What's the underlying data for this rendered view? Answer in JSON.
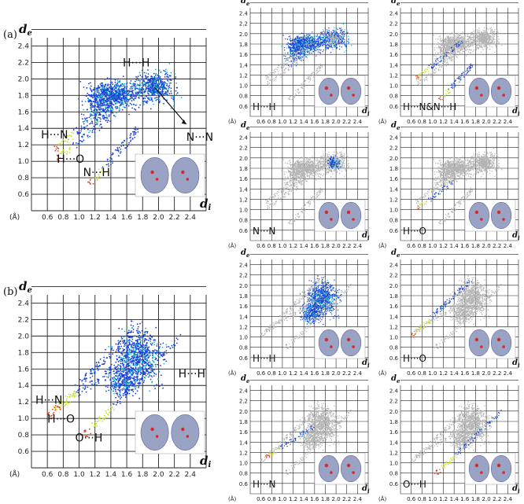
{
  "figure": {
    "panel_a_label": "(a)",
    "panel_b_label": "(b)"
  },
  "colors": {
    "background": "#ffffff",
    "grid": "#222222",
    "gray_points": "#b4b4b4",
    "density_low": "#1b3fd8",
    "density_mid": "#18b8d0",
    "density_high": "#c8e020",
    "density_peak": "#e23c1c"
  },
  "chart_data": [
    {
      "id": "a-full",
      "type": "scatter",
      "xlabel": "di",
      "ylabel": "de",
      "unit": "(Å)",
      "xlim": [
        0.4,
        2.6
      ],
      "ylim": [
        0.4,
        2.5
      ],
      "xticks": [
        "0.6",
        "0.8",
        "1.0",
        "1.2",
        "1.4",
        "1.6",
        "1.8",
        "2.0",
        "2.2",
        "2.4"
      ],
      "yticks": [
        "0.6",
        "0.8",
        "1.0",
        "1.2",
        "1.4",
        "1.6",
        "1.8",
        "2.0",
        "2.2",
        "2.4"
      ],
      "annotations": [
        {
          "text": "H···H",
          "x": 1.55,
          "y": 2.15
        },
        {
          "text": "N···N",
          "x": 2.35,
          "y": 1.25
        },
        {
          "text": "H···N",
          "x": 0.52,
          "y": 1.28
        },
        {
          "text": "H···O",
          "x": 0.72,
          "y": 0.98
        },
        {
          "text": "N···H",
          "x": 1.05,
          "y": 0.82
        }
      ],
      "regions": [
        {
          "name": "H···H",
          "clouds": [
            [
              1.45,
              1.8,
              0.35,
              0.18,
              700
            ],
            [
              1.95,
              1.9,
              0.3,
              0.2,
              400
            ],
            [
              1.25,
              1.65,
              0.2,
              0.25,
              250
            ]
          ]
        },
        {
          "name": "H···N",
          "spikes": [
            [
              0.68,
              1.12,
              1.55,
              1.85,
              90
            ],
            [
              1.12,
              0.7,
              1.75,
              1.4,
              90
            ]
          ]
        },
        {
          "name": "H···O",
          "spikes": [
            [
              0.72,
              1.02,
              1.4,
              1.55,
              60
            ]
          ]
        },
        {
          "name": "N···N",
          "clouds": [
            [
              1.95,
              1.9,
              0.12,
              0.12,
              120
            ]
          ]
        }
      ]
    },
    {
      "id": "a-HH",
      "type": "scatter",
      "label": "H···H",
      "xlim": [
        0.4,
        2.6
      ],
      "ylim": [
        0.4,
        2.5
      ],
      "highlight": "H···H"
    },
    {
      "id": "a-HN",
      "type": "scatter",
      "label": "H···N&N···H",
      "xlim": [
        0.4,
        2.6
      ],
      "ylim": [
        0.4,
        2.5
      ],
      "highlight": "H···N"
    },
    {
      "id": "a-NN",
      "type": "scatter",
      "label": "N···N",
      "xlim": [
        0.4,
        2.6
      ],
      "ylim": [
        0.4,
        2.5
      ],
      "highlight": "N···N"
    },
    {
      "id": "a-HO",
      "type": "scatter",
      "label": "H···O",
      "xlim": [
        0.4,
        2.6
      ],
      "ylim": [
        0.4,
        2.5
      ],
      "highlight": "H···O"
    },
    {
      "id": "b-full",
      "type": "scatter",
      "xlabel": "di",
      "ylabel": "de",
      "unit": "(Å)",
      "xlim": [
        0.4,
        2.6
      ],
      "ylim": [
        0.4,
        2.5
      ],
      "xticks": [
        "0.6",
        "0.8",
        "1.0",
        "1.2",
        "1.4",
        "1.6",
        "1.8",
        "2.0",
        "2.2",
        "2.4"
      ],
      "yticks": [
        "0.6",
        "0.8",
        "1.0",
        "1.2",
        "1.4",
        "1.6",
        "1.8",
        "2.0",
        "2.2",
        "2.4"
      ],
      "annotations": [
        {
          "text": "H···H",
          "x": 2.25,
          "y": 1.5
        },
        {
          "text": "H···N",
          "x": 0.45,
          "y": 1.18
        },
        {
          "text": "H···O",
          "x": 0.6,
          "y": 0.95
        },
        {
          "text": "O···H",
          "x": 0.95,
          "y": 0.72
        }
      ],
      "regions": [
        {
          "name": "H···H",
          "clouds": [
            [
              1.75,
              1.75,
              0.3,
              0.35,
              800
            ],
            [
              1.55,
              1.45,
              0.2,
              0.2,
              300
            ]
          ]
        },
        {
          "name": "H···O",
          "spikes": [
            [
              0.62,
              1.02,
              1.7,
              2.1,
              140
            ]
          ]
        },
        {
          "name": "H···N",
          "spikes": [
            [
              0.68,
              1.1,
              1.6,
              1.7,
              80
            ]
          ]
        },
        {
          "name": "O···H",
          "spikes": [
            [
              1.05,
              0.78,
              2.3,
              2.0,
              120
            ]
          ]
        }
      ]
    },
    {
      "id": "b-HH",
      "type": "scatter",
      "label": "H···H",
      "xlim": [
        0.4,
        2.6
      ],
      "ylim": [
        0.4,
        2.5
      ],
      "highlight": "H···H"
    },
    {
      "id": "b-HO",
      "type": "scatter",
      "label": "H···O",
      "xlim": [
        0.4,
        2.6
      ],
      "ylim": [
        0.4,
        2.5
      ],
      "highlight": "H···O"
    },
    {
      "id": "b-HN",
      "type": "scatter",
      "label": "H···N",
      "xlim": [
        0.4,
        2.6
      ],
      "ylim": [
        0.4,
        2.5
      ],
      "highlight": "H···N"
    },
    {
      "id": "b-OH",
      "type": "scatter",
      "label": "O···H",
      "xlim": [
        0.4,
        2.6
      ],
      "ylim": [
        0.4,
        2.5
      ],
      "highlight": "O···H"
    }
  ],
  "axis": {
    "de_main": "d",
    "de_sub": "e",
    "di_main": "d",
    "di_sub": "i",
    "unit": "(Å)"
  }
}
